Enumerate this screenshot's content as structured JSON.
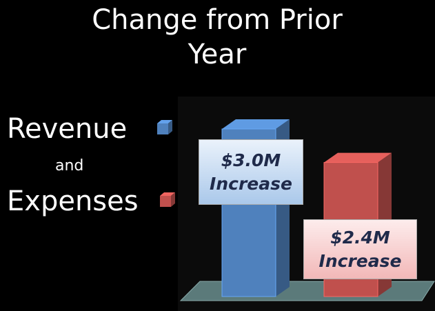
{
  "chart_data": {
    "type": "bar3d",
    "title": "Change from Prior Year",
    "legend_connector": "and",
    "series": [
      {
        "name": "Revenue",
        "color": "#4f81bd",
        "values": [
          3.0
        ],
        "value_labels": [
          "$3.0M Increase"
        ]
      },
      {
        "name": "Expenses",
        "color": "#c0504d",
        "values": [
          2.4
        ],
        "value_labels": [
          "$2.4M Increase"
        ]
      }
    ]
  }
}
